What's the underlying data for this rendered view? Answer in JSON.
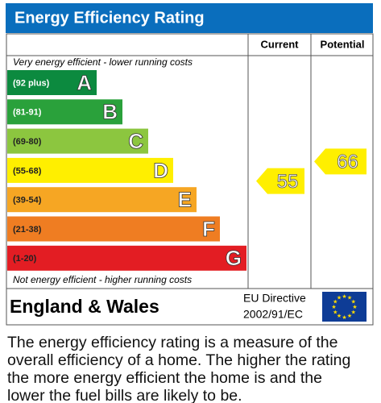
{
  "chart_data": {
    "type": "epc",
    "title": "Energy Efficiency Rating",
    "columns": [
      "Current",
      "Potential"
    ],
    "top_note": "Very energy efficient - lower running costs",
    "bottom_note": "Not energy efficient - higher running costs",
    "bands": [
      {
        "letter": "A",
        "range": "(92 plus)",
        "color": "#0c8a3f"
      },
      {
        "letter": "B",
        "range": "(81-91)",
        "color": "#2aa13b"
      },
      {
        "letter": "C",
        "range": "(69-80)",
        "color": "#8cc63f"
      },
      {
        "letter": "D",
        "range": "(55-68)",
        "color": "#ffef00"
      },
      {
        "letter": "E",
        "range": "(39-54)",
        "color": "#f6a623"
      },
      {
        "letter": "F",
        "range": "(21-38)",
        "color": "#ef7d22"
      },
      {
        "letter": "G",
        "range": "(1-20)",
        "color": "#e31d23"
      }
    ],
    "current": 55,
    "potential": 66,
    "region": "England & Wales",
    "directive": [
      "EU Directive",
      "2002/91/EC"
    ],
    "description": [
      "The energy efficiency rating is a measure of the",
      "overall efficiency of a home. The higher the rating",
      "the more energy efficient the home is and the",
      "lower the fuel bills are likely to be."
    ]
  }
}
